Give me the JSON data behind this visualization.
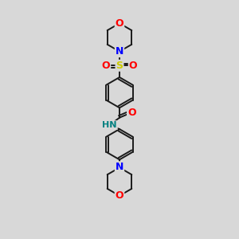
{
  "bg_color": "#d8d8d8",
  "bond_color": "#1a1a1a",
  "colors": {
    "N": "#0000ff",
    "O": "#ff0000",
    "S": "#cccc00",
    "H": "#008080",
    "C": "#1a1a1a"
  },
  "figsize": [
    3.0,
    3.0
  ],
  "dpi": 100,
  "xlim": [
    0,
    10
  ],
  "ylim": [
    0,
    10
  ]
}
